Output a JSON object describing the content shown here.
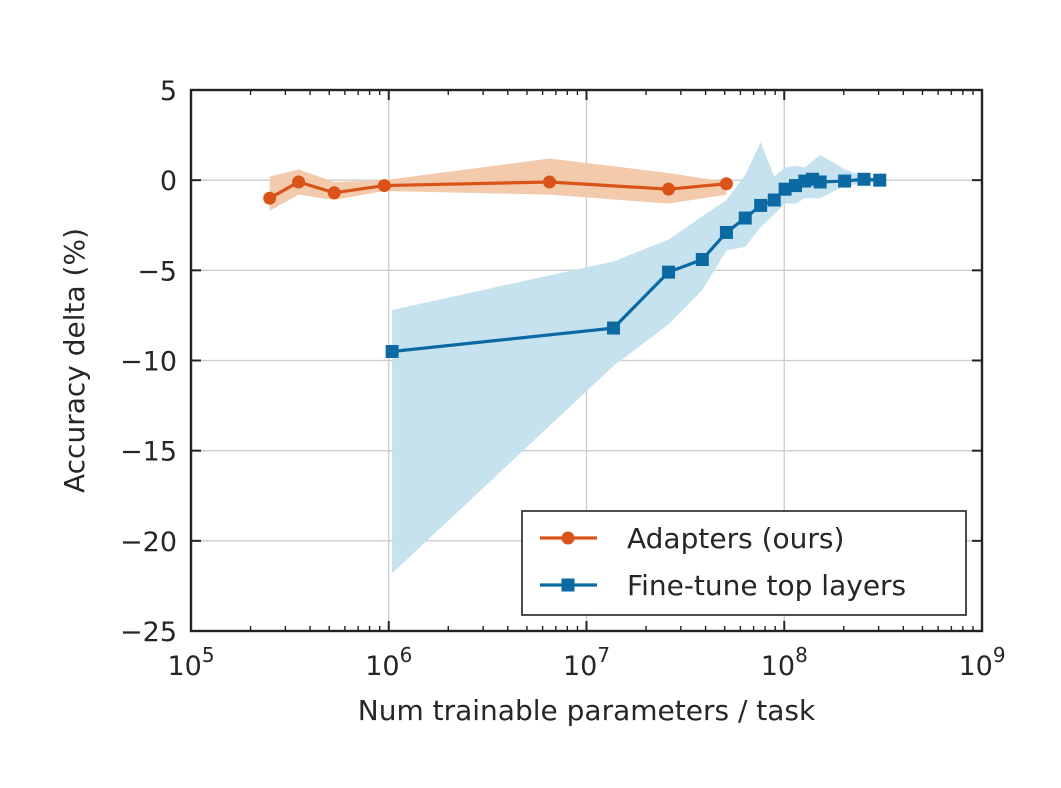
{
  "chart_data": {
    "type": "line",
    "xscale": "log",
    "xlim": [
      100000,
      1000000000
    ],
    "ylim": [
      -25,
      5
    ],
    "xlabel": "Num trainable parameters / task",
    "ylabel": "Accuracy delta (%)",
    "grid": true,
    "legend_position": "lower-right",
    "x_ticks": [
      {
        "value": 100000,
        "base": "10",
        "exp": "5"
      },
      {
        "value": 1000000,
        "base": "10",
        "exp": "6"
      },
      {
        "value": 10000000,
        "base": "10",
        "exp": "7"
      },
      {
        "value": 100000000,
        "base": "10",
        "exp": "8"
      },
      {
        "value": 1000000000,
        "base": "10",
        "exp": "9"
      }
    ],
    "y_ticks": [
      {
        "value": 5,
        "label": "5"
      },
      {
        "value": 0,
        "label": "0"
      },
      {
        "value": -5,
        "label": "−5"
      },
      {
        "value": -10,
        "label": "−10"
      },
      {
        "value": -15,
        "label": "−15"
      },
      {
        "value": -20,
        "label": "−20"
      },
      {
        "value": -25,
        "label": "−25"
      }
    ],
    "series": [
      {
        "name": "Adapters (ours)",
        "color": "#d95319",
        "band_color": "#f2c8a8",
        "marker": "circle",
        "x": [
          250000,
          350000,
          530000,
          950000,
          6500000,
          26000000,
          51000000
        ],
        "y": [
          -1.0,
          -0.1,
          -0.7,
          -0.3,
          -0.1,
          -0.5,
          -0.2
        ],
        "band_x": [
          250000,
          350000,
          530000,
          950000,
          6500000,
          26000000,
          51000000
        ],
        "band_upper": [
          0.2,
          0.6,
          -0.1,
          0.0,
          1.2,
          0.4,
          -0.1
        ],
        "band_lower": [
          -1.7,
          -0.8,
          -1.1,
          -0.6,
          -0.8,
          -1.3,
          -0.8
        ]
      },
      {
        "name": "Fine-tune top layers",
        "color": "#0b6aa2",
        "band_color": "#c3e0ee",
        "marker": "square",
        "x": [
          1040000,
          13700000,
          26000000,
          38500000,
          51000000,
          63500000,
          76000000,
          89000000,
          101000000,
          114000000,
          127000000,
          139000000,
          152000000,
          202000000,
          253000000,
          304000000
        ],
        "y": [
          -9.5,
          -8.2,
          -5.1,
          -4.4,
          -2.9,
          -2.1,
          -1.4,
          -1.1,
          -0.5,
          -0.3,
          -0.05,
          0.05,
          -0.1,
          -0.05,
          0.05,
          0.0
        ],
        "band_x": [
          1040000,
          13700000,
          26000000,
          38500000,
          51000000,
          63500000,
          76000000,
          89000000,
          101000000,
          114000000,
          127000000,
          152000000,
          202000000,
          253000000,
          304000000
        ],
        "band_upper": [
          -7.2,
          -4.5,
          -3.3,
          -2.0,
          -1.1,
          0.3,
          2.1,
          0.2,
          0.7,
          0.8,
          0.7,
          1.4,
          0.6,
          0.2,
          0.1
        ],
        "band_lower": [
          -21.8,
          -10.3,
          -8.0,
          -6.1,
          -3.9,
          -3.7,
          -2.6,
          -1.9,
          -1.3,
          -1.3,
          -1.0,
          -1.0,
          -0.3,
          -0.2,
          -0.1
        ]
      }
    ]
  }
}
